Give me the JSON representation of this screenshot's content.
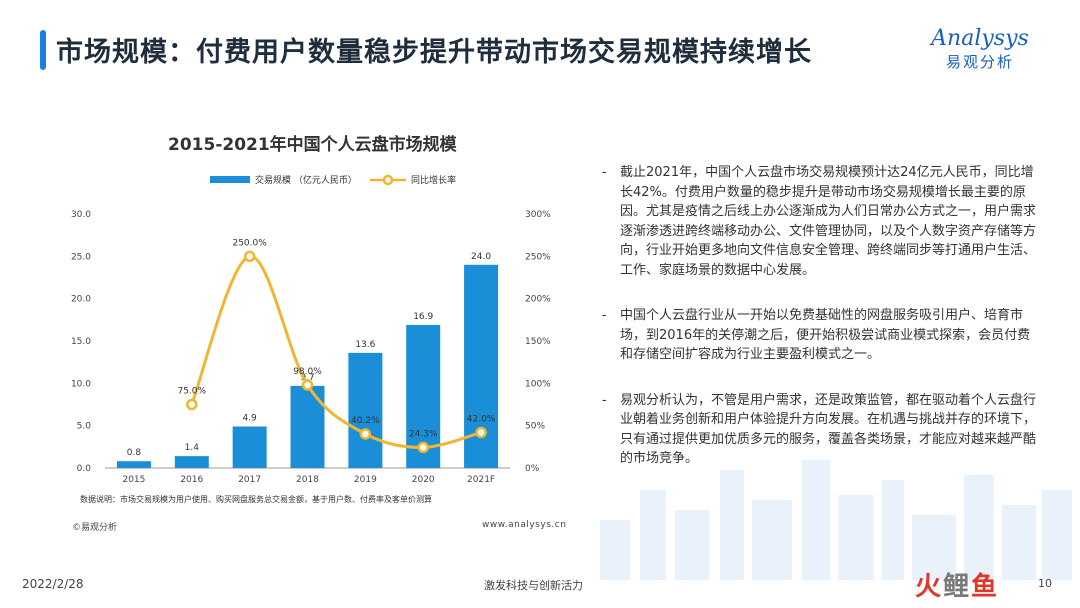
{
  "header": {
    "title": "市场规模：付费用户数量稳步提升带动市场交易规模持续增长",
    "logo_en": "Analysys",
    "logo_cn": "易观分析"
  },
  "chart_data": {
    "type": "bar",
    "title": "2015-2021年中国个人云盘市场规模",
    "categories": [
      "2015",
      "2016",
      "2017",
      "2018",
      "2019",
      "2020",
      "2021F"
    ],
    "series": [
      {
        "name": "交易规模 （亿元人民币）",
        "type": "bar",
        "axis": "left",
        "color": "#1a8fd8",
        "values": [
          0.8,
          1.4,
          4.9,
          9.7,
          13.6,
          16.9,
          24.0
        ],
        "labels": [
          "0.8",
          "1.4",
          "4.9",
          "9.7",
          "13.6",
          "16.9",
          "24.0"
        ]
      },
      {
        "name": "同比增长率",
        "type": "line",
        "axis": "right",
        "color": "#f3b530",
        "values": [
          null,
          75.0,
          250.0,
          98.0,
          40.2,
          24.3,
          42.0
        ],
        "labels": [
          "",
          "75.0%",
          "250.0%",
          "98.0%",
          "40.2%",
          "24.3%",
          "42.0%"
        ]
      }
    ],
    "y_left": {
      "min": 0,
      "max": 30,
      "ticks": [
        "0.0",
        "5.0",
        "10.0",
        "15.0",
        "20.0",
        "25.0",
        "30.0"
      ]
    },
    "y_right": {
      "min": 0,
      "max": 300,
      "ticks": [
        "0%",
        "50%",
        "100%",
        "150%",
        "200%",
        "250%",
        "300%"
      ]
    },
    "legend_position": "top",
    "grid": false
  },
  "chart_note": "数据说明：市场交易规模为用户使用、购买网盘服务总交易金额，基于用户数、付费率及客单价测算",
  "source": "©易观分析",
  "url": "www.analysys.cn",
  "bullets": [
    "截止2021年，中国个人云盘市场交易规模预计达24亿元人民币，同比增长42%。付费用户数量的稳步提升是带动市场交易规模增长最主要的原因。尤其是疫情之后线上办公逐渐成为人们日常办公方式之一，用户需求逐渐渗透进跨终端移动办公、文件管理协同，以及个人数字资产存储等方向，行业开始更多地向文件信息安全管理、跨终端同步等打通用户生活、工作、家庭场景的数据中心发展。",
    "中国个人云盘行业从一开始以免费基础性的网盘服务吸引用户、培育市场，到2016年的关停潮之后，便开始积极尝试商业模式探索，会员付费和存储空间扩容成为行业主要盈利模式之一。",
    "易观分析认为，不管是用户需求，还是政策监管，都在驱动着个人云盘行业朝着业务创新和用户体验提升方向发展。在机遇与挑战并存的环境下，只有通过提供更加优质多元的服务，覆盖各类场景，才能应对越来越严酷的市场竞争。"
  ],
  "footer": {
    "date": "2022/2/28",
    "slogan": "激发科技与创新活力",
    "page": "10",
    "watermark_a": "火",
    "watermark_b": "鲤",
    "watermark_c": "鱼"
  },
  "colors": {
    "accent": "#1a7fe0",
    "bar": "#1a8fd8",
    "line": "#f3b530"
  }
}
